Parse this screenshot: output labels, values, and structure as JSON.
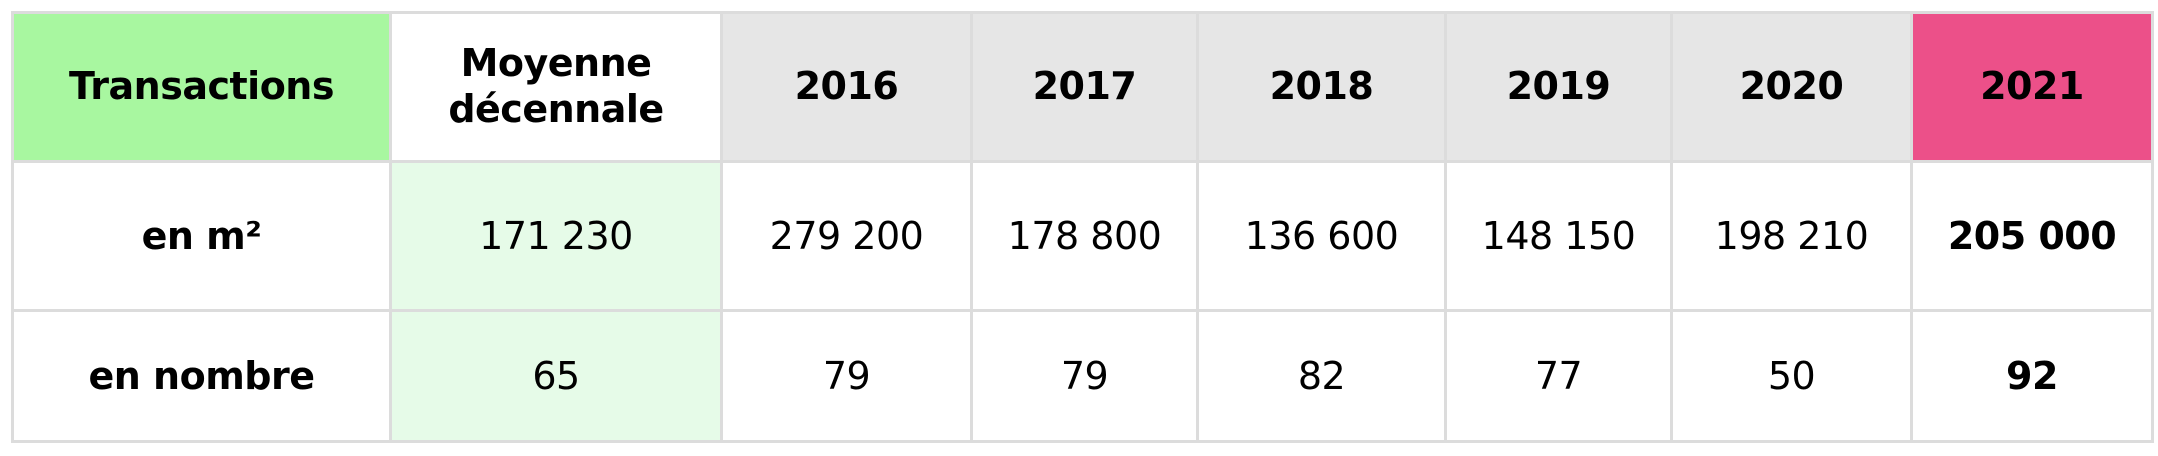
{
  "table": {
    "header": [
      "Transactions",
      "Moyenne décennale",
      "2016",
      "2017",
      "2018",
      "2019",
      "2020",
      "2021"
    ],
    "rows": [
      [
        "en m²",
        "171 230",
        "279 200",
        "178 800",
        "136 600",
        "148 150",
        "198 210",
        "205 000"
      ],
      [
        "en nombre",
        "65",
        "79",
        "79",
        "82",
        "77",
        "50",
        "92"
      ]
    ]
  }
}
